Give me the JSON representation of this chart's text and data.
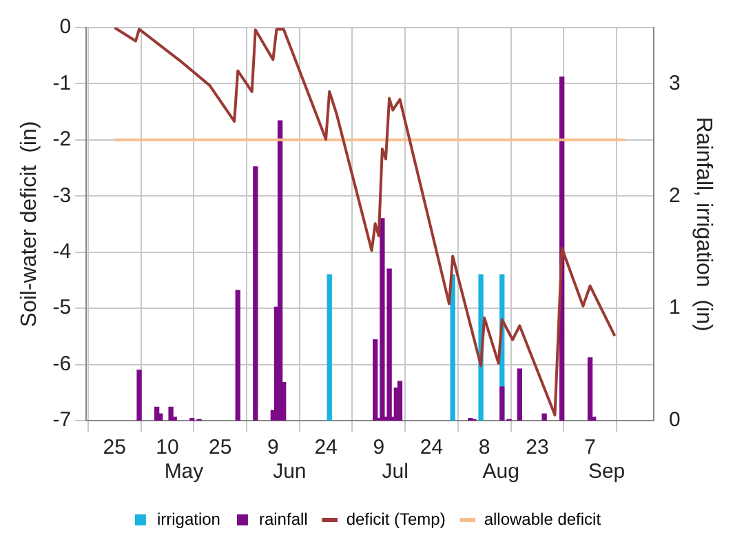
{
  "chart_data": {
    "type": "line",
    "xlabel": null,
    "ylabel": "Soil-water deficit  (in)",
    "y2label": "Rainfall, irrigation  (in)",
    "xlim": [
      "--04-25",
      "--09-17"
    ],
    "xticks": [
      {
        "value": "--04-25",
        "label": "25"
      },
      {
        "value": "--05-10",
        "label": "10"
      },
      {
        "value": "--05-25",
        "label": "25"
      },
      {
        "value": "--06-09",
        "label": "9"
      },
      {
        "value": "--06-24",
        "label": "24"
      },
      {
        "value": "--07-09",
        "label": "9"
      },
      {
        "value": "--07-24",
        "label": "24"
      },
      {
        "value": "--08-08",
        "label": "8"
      },
      {
        "value": "--08-23",
        "label": "23"
      },
      {
        "value": "--09-07",
        "label": "7"
      }
    ],
    "ylim": [
      -7,
      0
    ],
    "yticks": [
      -7,
      -6,
      -5,
      -4,
      -3,
      -2,
      -1,
      0
    ],
    "y2lim": [
      0,
      3.5
    ],
    "y2ticks": [
      0,
      1,
      2,
      3
    ],
    "annotations": [
      "May",
      "Jun",
      "Jul",
      "Aug",
      "Sep"
    ],
    "series": [
      {
        "name": "irrigation",
        "type": "bar",
        "axis": "y2",
        "color": "#1ab2e0",
        "x": [
          "--06-25",
          "--07-30",
          "--08-07",
          "--08-13"
        ],
        "values": [
          1.3,
          1.3,
          1.3,
          1.3
        ]
      },
      {
        "name": "rainfall",
        "type": "bar",
        "axis": "y2",
        "color": "#7b0a86",
        "x": [
          "--05-02",
          "--05-07",
          "--05-08",
          "--05-11",
          "--05-12",
          "--05-17",
          "--05-19",
          "--05-30",
          "--06-04",
          "--06-09",
          "--06-10",
          "--06-11",
          "--06-12",
          "--07-08",
          "--07-09",
          "--07-10",
          "--07-11",
          "--07-12",
          "--07-13",
          "--07-14",
          "--07-15",
          "--08-04",
          "--08-05",
          "--08-13",
          "--08-15",
          "--08-18",
          "--08-25",
          "--08-30",
          "--09-07",
          "--09-08"
        ],
        "values": [
          0.45,
          0.12,
          0.06,
          0.12,
          0.03,
          0.02,
          0.01,
          1.16,
          2.26,
          0.09,
          1.01,
          2.67,
          0.34,
          0.72,
          0.02,
          1.8,
          0.03,
          1.35,
          0.03,
          0.29,
          0.35,
          0.02,
          0.01,
          0.3,
          0.01,
          0.46,
          0.06,
          3.06,
          0.56,
          0.03
        ]
      },
      {
        "name": "deficit (Temp)",
        "color": "#9b3a34",
        "x": [
          "--04-25",
          "--05-01",
          "--05-02",
          "--05-14",
          "--05-22",
          "--05-29",
          "--05-30",
          "--06-03",
          "--06-04",
          "--06-09",
          "--06-10",
          "--06-12",
          "--06-24",
          "--06-25",
          "--06-27",
          "--07-07",
          "--07-08",
          "--07-09",
          "--07-10",
          "--07-11",
          "--07-12",
          "--07-13",
          "--07-15",
          "--07-29",
          "--07-30",
          "--08-07",
          "--08-08",
          "--08-12",
          "--08-13",
          "--08-16",
          "--08-18",
          "--08-28",
          "--08-30",
          "--09-05",
          "--09-07",
          "--09-14"
        ],
        "values": [
          0,
          -0.24,
          -0.03,
          -0.61,
          -1.03,
          -1.67,
          -0.77,
          -1.14,
          -0.04,
          -0.57,
          -0.03,
          -0.03,
          -1.99,
          -1.14,
          -1.53,
          -3.97,
          -3.49,
          -3.71,
          -2.16,
          -2.34,
          -1.26,
          -1.47,
          -1.28,
          -4.92,
          -4.07,
          -6.02,
          -5.17,
          -5.98,
          -5.2,
          -5.56,
          -5.31,
          -6.9,
          -3.93,
          -4.96,
          -4.6,
          -5.49
        ]
      }
    ],
    "ref_lines": [
      {
        "axis": "y",
        "value": -2,
        "label": "allowable deficit",
        "color": "#f7bf8c"
      }
    ],
    "grid": true,
    "legend": "bottom",
    "marker": "none",
    "line_style": "solid"
  }
}
